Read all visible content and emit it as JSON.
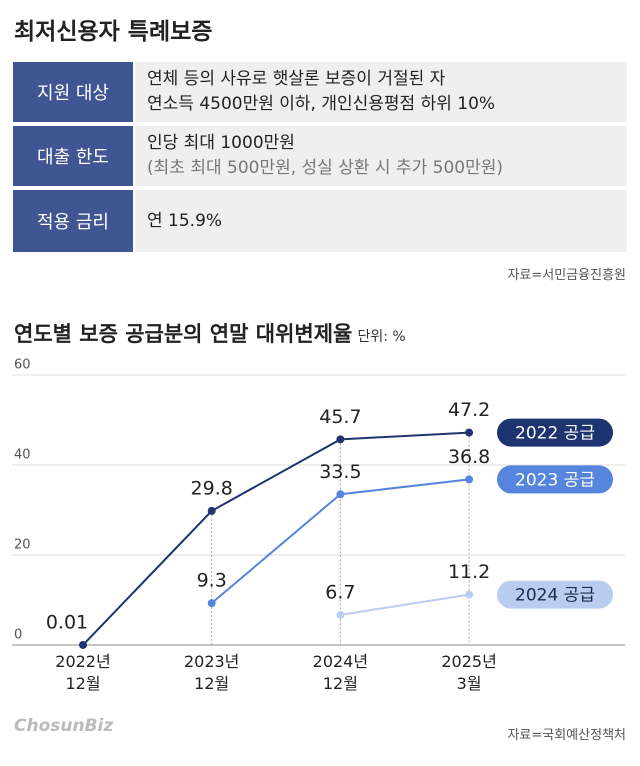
{
  "title": "최저신용자 특례보증",
  "table": {
    "rows": [
      {
        "label": "지원 대상",
        "lines": [
          "연체 등의 사유로 햇살론 보증이 거절된 자",
          "연소득 4500만원 이하, 개인신용평점 하위 10%"
        ]
      },
      {
        "label": "대출 한도",
        "lines": [
          "인당 최대 1000만원",
          "(최초 최대 500만원, 성실 상환 시 추가 500만원)"
        ]
      },
      {
        "label": "적용 금리",
        "lines": [
          "연 15.9%"
        ]
      }
    ],
    "source": "자료=서민금융진흥원"
  },
  "chart_data": {
    "type": "line",
    "title": "연도별 보증 공급분의 연말 대위변제율",
    "unit": "단위: %",
    "categories": [
      "2022년\n12월",
      "2023년\n12월",
      "2024년\n12월",
      "2025년\n3월"
    ],
    "series": [
      {
        "name": "2022 공급",
        "color": "#1e3470",
        "values": [
          0.01,
          29.8,
          45.7,
          47.2
        ]
      },
      {
        "name": "2023 공급",
        "color": "#5585dc",
        "values": [
          null,
          9.3,
          33.5,
          36.8
        ]
      },
      {
        "name": "2024 공급",
        "color": "#b9cdf0",
        "values": [
          null,
          null,
          6.7,
          11.2
        ]
      }
    ],
    "ylim": [
      0,
      60
    ],
    "yticks": [
      0,
      20,
      40,
      60
    ],
    "grid": true,
    "source": "자료=국회예산정책처"
  },
  "footer": {
    "logo": "ChosunBiz"
  }
}
